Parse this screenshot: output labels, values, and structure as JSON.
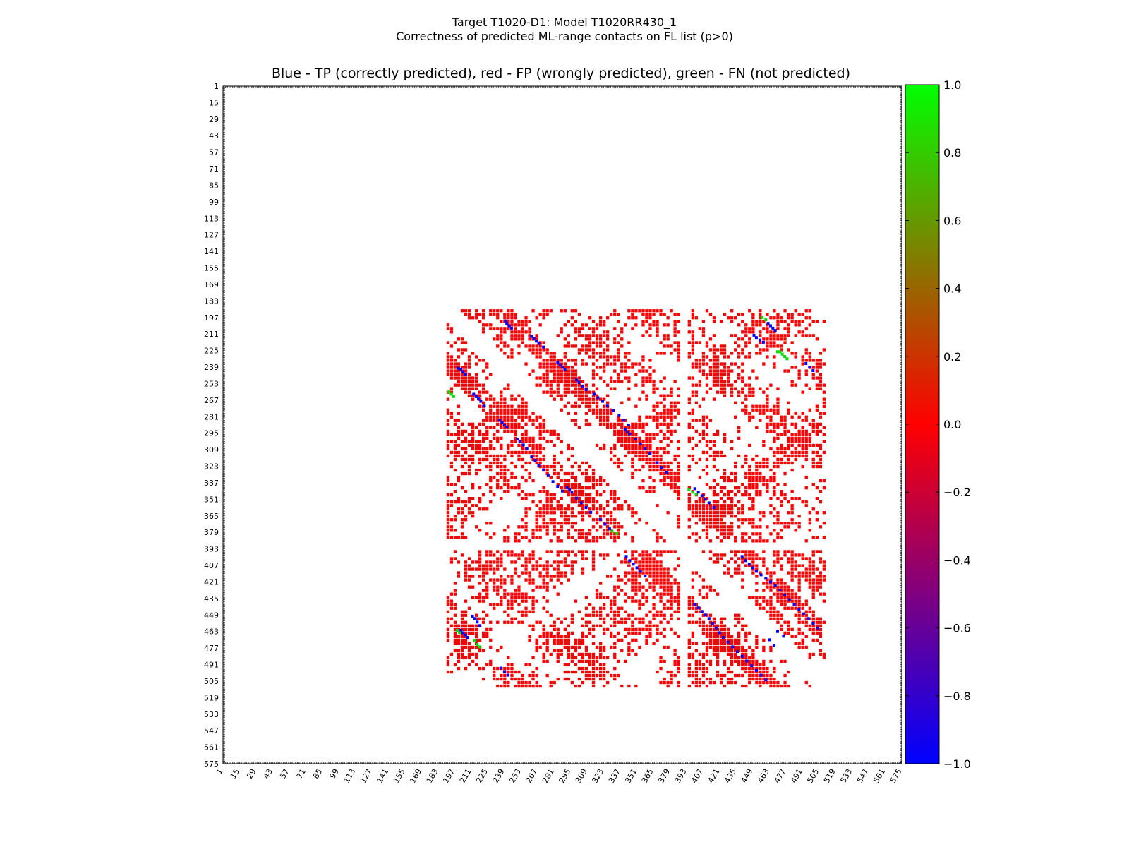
{
  "header": {
    "title_line1": "Target T1020-D1: Model T1020RR430_1",
    "title_line2": "Correctness of predicted ML-range contacts on FL list (p>0)"
  },
  "chart_data": {
    "type": "heatmap",
    "title": "Blue - TP (correctly predicted), red - FP (wrongly predicted), green - FN (not predicted)",
    "xlabel": "",
    "ylabel": "",
    "xlim": [
      1,
      575
    ],
    "ylim": [
      1,
      575
    ],
    "ticks": [
      1,
      15,
      29,
      43,
      57,
      71,
      85,
      99,
      113,
      127,
      141,
      155,
      169,
      183,
      197,
      211,
      225,
      239,
      253,
      267,
      281,
      295,
      309,
      323,
      337,
      351,
      365,
      379,
      393,
      407,
      421,
      435,
      449,
      463,
      477,
      491,
      505,
      519,
      533,
      547,
      561,
      575
    ],
    "tick_labels": [
      "1",
      "15",
      "29",
      "43",
      "57",
      "71",
      "85",
      "99",
      "113",
      "127",
      "141",
      "155",
      "169",
      "183",
      "197",
      "211",
      "225",
      "239",
      "253",
      "267",
      "281",
      "295",
      "309",
      "323",
      "337",
      "351",
      "365",
      "379",
      "393",
      "407",
      "421",
      "435",
      "449",
      "463",
      "477",
      "491",
      "505",
      "519",
      "533",
      "547",
      "561",
      "575"
    ],
    "domain_segments": [
      [
        190,
        385
      ],
      [
        393,
        510
      ]
    ],
    "excluded_diagonal_band": 12,
    "colors": {
      "tp": "#0000ff",
      "fp": "#ff0000",
      "fn": "#00dd00"
    },
    "true_positive_contacts": [
      [
        200,
        240
      ],
      [
        202,
        241
      ],
      [
        204,
        243
      ],
      [
        206,
        245
      ],
      [
        235,
        284
      ],
      [
        237,
        286
      ],
      [
        239,
        288
      ],
      [
        241,
        290
      ],
      [
        250,
        300
      ],
      [
        252,
        302
      ],
      [
        255,
        305
      ],
      [
        258,
        308
      ],
      [
        262,
        315
      ],
      [
        265,
        318
      ],
      [
        268,
        322
      ],
      [
        272,
        326
      ],
      [
        276,
        331
      ],
      [
        280,
        336
      ],
      [
        284,
        340
      ],
      [
        288,
        344
      ],
      [
        300,
        350
      ],
      [
        304,
        354
      ],
      [
        308,
        358
      ],
      [
        312,
        362
      ],
      [
        320,
        368
      ],
      [
        324,
        372
      ],
      [
        328,
        376
      ],
      [
        213,
        262
      ],
      [
        215,
        264
      ],
      [
        217,
        266
      ],
      [
        219,
        268
      ],
      [
        222,
        272
      ],
      [
        292,
        341
      ],
      [
        294,
        343
      ],
      [
        296,
        345
      ],
      [
        342,
        400
      ],
      [
        345,
        403
      ],
      [
        348,
        406
      ],
      [
        351,
        409
      ],
      [
        354,
        412
      ],
      [
        358,
        416
      ],
      [
        400,
        440
      ],
      [
        403,
        443
      ],
      [
        406,
        446
      ],
      [
        409,
        449
      ],
      [
        412,
        452
      ],
      [
        415,
        456
      ],
      [
        418,
        460
      ],
      [
        421,
        464
      ],
      [
        424,
        468
      ],
      [
        428,
        472
      ],
      [
        432,
        476
      ],
      [
        436,
        480
      ],
      [
        440,
        484
      ],
      [
        444,
        488
      ],
      [
        448,
        492
      ],
      [
        452,
        496
      ],
      [
        456,
        500
      ],
      [
        460,
        504
      ],
      [
        463,
        470
      ],
      [
        467,
        475
      ],
      [
        212,
        450
      ],
      [
        214,
        452
      ],
      [
        216,
        455
      ],
      [
        218,
        458
      ],
      [
        202,
        462
      ],
      [
        204,
        464
      ],
      [
        206,
        466
      ],
      [
        208,
        468
      ],
      [
        236,
        494
      ],
      [
        239,
        497
      ],
      [
        242,
        500
      ]
    ],
    "false_negative_contacts": [
      [
        197,
        457
      ],
      [
        199,
        460
      ],
      [
        226,
        472
      ],
      [
        228,
        474
      ],
      [
        230,
        476
      ],
      [
        232,
        478
      ],
      [
        462,
        199
      ],
      [
        464,
        201
      ],
      [
        471,
        214
      ],
      [
        474,
        216
      ],
      [
        476,
        218
      ],
      [
        343,
        395
      ],
      [
        345,
        398
      ],
      [
        347,
        401
      ],
      [
        260,
        192
      ],
      [
        262,
        194
      ],
      [
        264,
        196
      ],
      [
        378,
        330
      ],
      [
        380,
        334
      ],
      [
        226,
        470
      ]
    ],
    "colorbar": {
      "min": -1.0,
      "max": 1.0,
      "ticks": [
        1.0,
        0.8,
        0.6,
        0.4,
        0.2,
        0.0,
        -0.2,
        -0.4,
        -0.6,
        -0.8,
        -1.0
      ],
      "labels": [
        "1.0",
        "0.8",
        "0.6",
        "0.4",
        "0.2",
        "0.0",
        "−0.2",
        "−0.4",
        "−0.6",
        "−0.8",
        "−1.0"
      ],
      "stops": [
        "#0000ff",
        "#ff0000",
        "#00ff00"
      ]
    },
    "grid": false,
    "legend": "colorbar-right"
  }
}
